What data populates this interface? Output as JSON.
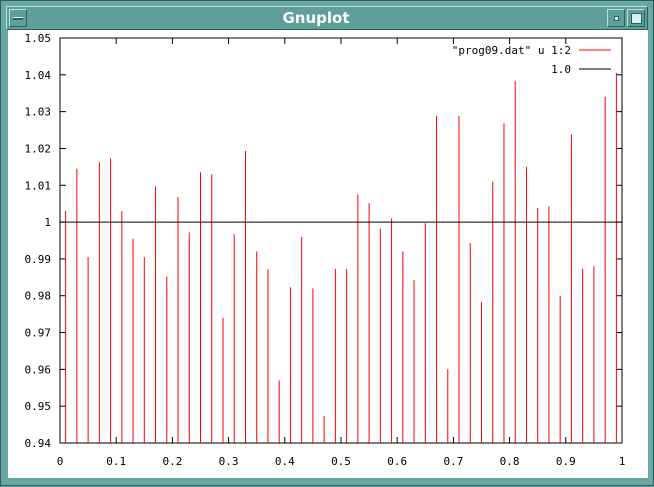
{
  "window": {
    "title": "Gnuplot",
    "icons": [
      "window-menu-icon",
      "minimize-icon",
      "maximize-icon"
    ]
  },
  "chart_data": {
    "type": "impulse",
    "xlim": [
      0,
      1
    ],
    "ylim": [
      0.94,
      1.05
    ],
    "x_ticks": [
      "0",
      "0.1",
      "0.2",
      "0.3",
      "0.4",
      "0.5",
      "0.6",
      "0.7",
      "0.8",
      "0.9",
      "1"
    ],
    "x_tick_values": [
      0,
      0.1,
      0.2,
      0.3,
      0.4,
      0.5,
      0.6,
      0.7,
      0.8,
      0.9,
      1
    ],
    "y_ticks": [
      "0.94",
      "0.95",
      "0.96",
      "0.97",
      "0.98",
      "0.99",
      "1",
      "1.01",
      "1.02",
      "1.03",
      "1.04",
      "1.05"
    ],
    "y_tick_values": [
      0.94,
      0.95,
      0.96,
      0.97,
      0.98,
      0.99,
      1,
      1.01,
      1.02,
      1.03,
      1.04,
      1.05
    ],
    "legend_position": "top-right",
    "series": [
      {
        "name": "\"prog09.dat\" u 1:2",
        "style": "impulses",
        "color": "#ff0000",
        "x": [
          0.01,
          0.03,
          0.05,
          0.07,
          0.09,
          0.11,
          0.13,
          0.15,
          0.17,
          0.19,
          0.21,
          0.23,
          0.25,
          0.27,
          0.29,
          0.31,
          0.33,
          0.35,
          0.37,
          0.39,
          0.41,
          0.43,
          0.45,
          0.47,
          0.49,
          0.51,
          0.53,
          0.55,
          0.57,
          0.59,
          0.61,
          0.63,
          0.65,
          0.67,
          0.69,
          0.71,
          0.73,
          0.75,
          0.77,
          0.79,
          0.81,
          0.83,
          0.85,
          0.87,
          0.89,
          0.91,
          0.93,
          0.95,
          0.97,
          0.99
        ],
        "y": [
          1.003,
          1.0145,
          0.9905,
          1.0163,
          1.0173,
          1.003,
          0.9955,
          0.9905,
          1.0097,
          0.9852,
          1.0068,
          0.9972,
          1.0135,
          1.013,
          0.974,
          0.9967,
          1.0193,
          0.992,
          0.9872,
          0.957,
          0.9823,
          0.996,
          0.982,
          0.9473,
          0.9873,
          0.9873,
          1.0075,
          1.0052,
          0.9982,
          1.001,
          0.992,
          0.9843,
          0.9997,
          1.0288,
          0.96,
          1.0288,
          0.9943,
          0.9783,
          1.011,
          1.0268,
          1.0383,
          1.015,
          1.0038,
          1.0043,
          0.98,
          1.0238,
          0.9873,
          0.988,
          1.034,
          1.0405
        ]
      },
      {
        "name": "1.0",
        "style": "line",
        "color": "#000000",
        "x": [
          0,
          1
        ],
        "y": [
          1.0,
          1.0
        ]
      }
    ]
  }
}
